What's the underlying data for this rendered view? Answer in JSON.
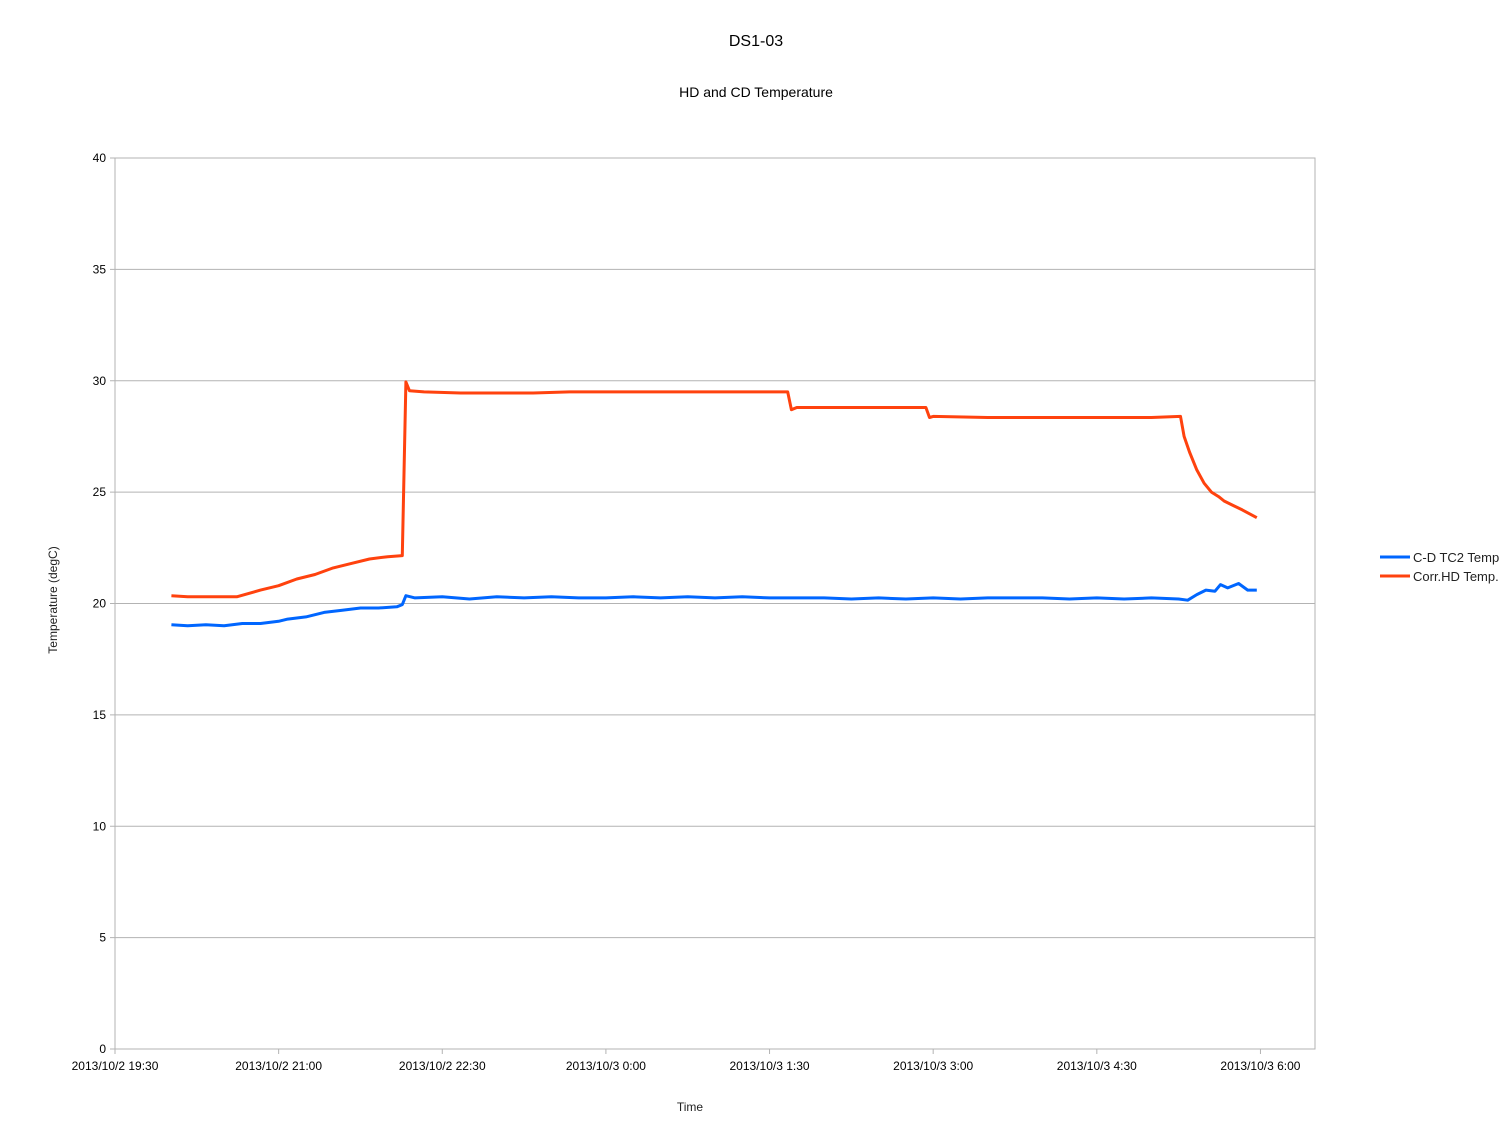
{
  "chart_data": {
    "type": "line",
    "title": "DS1-03",
    "subtitle": "HD and CD Temperature",
    "xlabel": "Time",
    "ylabel": "Temperature (degC)",
    "ylim": [
      0,
      40
    ],
    "yticks": [
      "0",
      "5",
      "10",
      "15",
      "20",
      "25",
      "30",
      "35",
      "40"
    ],
    "xlim": [
      "2013/10/2 19:30",
      "2013/10/3 6:30"
    ],
    "xticks": [
      "2013/10/2 19:30",
      "2013/10/2 21:00",
      "2013/10/2 22:30",
      "2013/10/3 0:00",
      "2013/10/3 1:30",
      "2013/10/3 3:00",
      "2013/10/3 4:30",
      "2013/10/3 6:00"
    ],
    "grid": "horizontal",
    "legend": "right",
    "series": [
      {
        "name": "C-D TC2 Temp",
        "color": "#0066ff",
        "points": [
          [
            "2013/10/2 20:01",
            19.05
          ],
          [
            "2013/10/2 20:10",
            19.0
          ],
          [
            "2013/10/2 20:20",
            19.05
          ],
          [
            "2013/10/2 20:30",
            19.0
          ],
          [
            "2013/10/2 20:40",
            19.1
          ],
          [
            "2013/10/2 20:50",
            19.1
          ],
          [
            "2013/10/2 21:00",
            19.2
          ],
          [
            "2013/10/2 21:05",
            19.3
          ],
          [
            "2013/10/2 21:15",
            19.4
          ],
          [
            "2013/10/2 21:25",
            19.6
          ],
          [
            "2013/10/2 21:35",
            19.7
          ],
          [
            "2013/10/2 21:45",
            19.8
          ],
          [
            "2013/10/2 21:55",
            19.8
          ],
          [
            "2013/10/2 22:05",
            19.85
          ],
          [
            "2013/10/2 22:08",
            19.95
          ],
          [
            "2013/10/2 22:10",
            20.35
          ],
          [
            "2013/10/2 22:15",
            20.25
          ],
          [
            "2013/10/2 22:30",
            20.3
          ],
          [
            "2013/10/2 22:45",
            20.2
          ],
          [
            "2013/10/2 23:00",
            20.3
          ],
          [
            "2013/10/2 23:15",
            20.25
          ],
          [
            "2013/10/2 23:30",
            20.3
          ],
          [
            "2013/10/2 23:45",
            20.25
          ],
          [
            "2013/10/3 0:00",
            20.25
          ],
          [
            "2013/10/3 0:15",
            20.3
          ],
          [
            "2013/10/3 0:30",
            20.25
          ],
          [
            "2013/10/3 0:45",
            20.3
          ],
          [
            "2013/10/3 1:00",
            20.25
          ],
          [
            "2013/10/3 1:15",
            20.3
          ],
          [
            "2013/10/3 1:30",
            20.25
          ],
          [
            "2013/10/3 1:45",
            20.25
          ],
          [
            "2013/10/3 2:00",
            20.25
          ],
          [
            "2013/10/3 2:15",
            20.2
          ],
          [
            "2013/10/3 2:30",
            20.25
          ],
          [
            "2013/10/3 2:45",
            20.2
          ],
          [
            "2013/10/3 3:00",
            20.25
          ],
          [
            "2013/10/3 3:15",
            20.2
          ],
          [
            "2013/10/3 3:30",
            20.25
          ],
          [
            "2013/10/3 3:45",
            20.25
          ],
          [
            "2013/10/3 4:00",
            20.25
          ],
          [
            "2013/10/3 4:15",
            20.2
          ],
          [
            "2013/10/3 4:30",
            20.25
          ],
          [
            "2013/10/3 4:45",
            20.2
          ],
          [
            "2013/10/3 5:00",
            20.25
          ],
          [
            "2013/10/3 5:15",
            20.2
          ],
          [
            "2013/10/3 5:20",
            20.15
          ],
          [
            "2013/10/3 5:25",
            20.4
          ],
          [
            "2013/10/3 5:30",
            20.6
          ],
          [
            "2013/10/3 5:35",
            20.55
          ],
          [
            "2013/10/3 5:38",
            20.85
          ],
          [
            "2013/10/3 5:42",
            20.7
          ],
          [
            "2013/10/3 5:48",
            20.9
          ],
          [
            "2013/10/3 5:53",
            20.6
          ],
          [
            "2013/10/3 5:58",
            20.6
          ]
        ]
      },
      {
        "name": "Corr.HD Temp.",
        "color": "#ff420e",
        "points": [
          [
            "2013/10/2 20:01",
            20.35
          ],
          [
            "2013/10/2 20:10",
            20.3
          ],
          [
            "2013/10/2 20:20",
            20.3
          ],
          [
            "2013/10/2 20:30",
            20.3
          ],
          [
            "2013/10/2 20:37",
            20.3
          ],
          [
            "2013/10/2 20:50",
            20.6
          ],
          [
            "2013/10/2 21:00",
            20.8
          ],
          [
            "2013/10/2 21:10",
            21.1
          ],
          [
            "2013/10/2 21:20",
            21.3
          ],
          [
            "2013/10/2 21:30",
            21.6
          ],
          [
            "2013/10/2 21:40",
            21.8
          ],
          [
            "2013/10/2 21:50",
            22.0
          ],
          [
            "2013/10/2 22:00",
            22.1
          ],
          [
            "2013/10/2 22:08",
            22.15
          ],
          [
            "2013/10/2 22:10",
            29.95
          ],
          [
            "2013/10/2 22:12",
            29.55
          ],
          [
            "2013/10/2 22:20",
            29.5
          ],
          [
            "2013/10/2 22:40",
            29.45
          ],
          [
            "2013/10/2 23:00",
            29.45
          ],
          [
            "2013/10/2 23:20",
            29.45
          ],
          [
            "2013/10/2 23:40",
            29.5
          ],
          [
            "2013/10/3 0:00",
            29.5
          ],
          [
            "2013/10/3 0:20",
            29.5
          ],
          [
            "2013/10/3 0:40",
            29.5
          ],
          [
            "2013/10/3 1:00",
            29.5
          ],
          [
            "2013/10/3 1:20",
            29.5
          ],
          [
            "2013/10/3 1:40",
            29.5
          ],
          [
            "2013/10/3 1:42",
            28.7
          ],
          [
            "2013/10/3 1:45",
            28.8
          ],
          [
            "2013/10/3 2:00",
            28.8
          ],
          [
            "2013/10/3 2:20",
            28.8
          ],
          [
            "2013/10/3 2:40",
            28.8
          ],
          [
            "2013/10/3 2:56",
            28.8
          ],
          [
            "2013/10/3 2:58",
            28.35
          ],
          [
            "2013/10/3 3:00",
            28.4
          ],
          [
            "2013/10/3 3:30",
            28.35
          ],
          [
            "2013/10/3 4:00",
            28.35
          ],
          [
            "2013/10/3 4:30",
            28.35
          ],
          [
            "2013/10/3 5:00",
            28.35
          ],
          [
            "2013/10/3 5:16",
            28.4
          ],
          [
            "2013/10/3 5:18",
            27.5
          ],
          [
            "2013/10/3 5:21",
            26.8
          ],
          [
            "2013/10/3 5:25",
            26.0
          ],
          [
            "2013/10/3 5:29",
            25.4
          ],
          [
            "2013/10/3 5:33",
            25.0
          ],
          [
            "2013/10/3 5:37",
            24.8
          ],
          [
            "2013/10/3 5:40",
            24.6
          ],
          [
            "2013/10/3 5:45",
            24.4
          ],
          [
            "2013/10/3 5:50",
            24.2
          ],
          [
            "2013/10/3 5:58",
            23.85
          ]
        ]
      }
    ]
  }
}
